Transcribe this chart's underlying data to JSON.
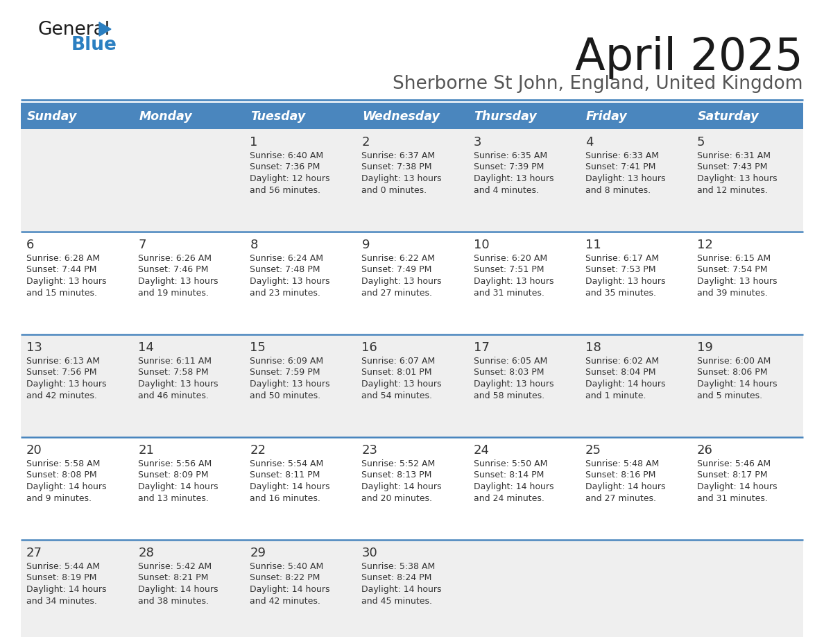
{
  "title": "April 2025",
  "subtitle": "Sherborne St John, England, United Kingdom",
  "header_bg": "#4a86be",
  "header_text": "#ffffff",
  "row_bg_light": "#efefef",
  "row_bg_white": "#ffffff",
  "separator_color": "#4a86be",
  "text_color": "#333333",
  "day_headers": [
    "Sunday",
    "Monday",
    "Tuesday",
    "Wednesday",
    "Thursday",
    "Friday",
    "Saturday"
  ],
  "calendar": [
    [
      {
        "day": "",
        "info": ""
      },
      {
        "day": "",
        "info": ""
      },
      {
        "day": "1",
        "info": "Sunrise: 6:40 AM\nSunset: 7:36 PM\nDaylight: 12 hours\nand 56 minutes."
      },
      {
        "day": "2",
        "info": "Sunrise: 6:37 AM\nSunset: 7:38 PM\nDaylight: 13 hours\nand 0 minutes."
      },
      {
        "day": "3",
        "info": "Sunrise: 6:35 AM\nSunset: 7:39 PM\nDaylight: 13 hours\nand 4 minutes."
      },
      {
        "day": "4",
        "info": "Sunrise: 6:33 AM\nSunset: 7:41 PM\nDaylight: 13 hours\nand 8 minutes."
      },
      {
        "day": "5",
        "info": "Sunrise: 6:31 AM\nSunset: 7:43 PM\nDaylight: 13 hours\nand 12 minutes."
      }
    ],
    [
      {
        "day": "6",
        "info": "Sunrise: 6:28 AM\nSunset: 7:44 PM\nDaylight: 13 hours\nand 15 minutes."
      },
      {
        "day": "7",
        "info": "Sunrise: 6:26 AM\nSunset: 7:46 PM\nDaylight: 13 hours\nand 19 minutes."
      },
      {
        "day": "8",
        "info": "Sunrise: 6:24 AM\nSunset: 7:48 PM\nDaylight: 13 hours\nand 23 minutes."
      },
      {
        "day": "9",
        "info": "Sunrise: 6:22 AM\nSunset: 7:49 PM\nDaylight: 13 hours\nand 27 minutes."
      },
      {
        "day": "10",
        "info": "Sunrise: 6:20 AM\nSunset: 7:51 PM\nDaylight: 13 hours\nand 31 minutes."
      },
      {
        "day": "11",
        "info": "Sunrise: 6:17 AM\nSunset: 7:53 PM\nDaylight: 13 hours\nand 35 minutes."
      },
      {
        "day": "12",
        "info": "Sunrise: 6:15 AM\nSunset: 7:54 PM\nDaylight: 13 hours\nand 39 minutes."
      }
    ],
    [
      {
        "day": "13",
        "info": "Sunrise: 6:13 AM\nSunset: 7:56 PM\nDaylight: 13 hours\nand 42 minutes."
      },
      {
        "day": "14",
        "info": "Sunrise: 6:11 AM\nSunset: 7:58 PM\nDaylight: 13 hours\nand 46 minutes."
      },
      {
        "day": "15",
        "info": "Sunrise: 6:09 AM\nSunset: 7:59 PM\nDaylight: 13 hours\nand 50 minutes."
      },
      {
        "day": "16",
        "info": "Sunrise: 6:07 AM\nSunset: 8:01 PM\nDaylight: 13 hours\nand 54 minutes."
      },
      {
        "day": "17",
        "info": "Sunrise: 6:05 AM\nSunset: 8:03 PM\nDaylight: 13 hours\nand 58 minutes."
      },
      {
        "day": "18",
        "info": "Sunrise: 6:02 AM\nSunset: 8:04 PM\nDaylight: 14 hours\nand 1 minute."
      },
      {
        "day": "19",
        "info": "Sunrise: 6:00 AM\nSunset: 8:06 PM\nDaylight: 14 hours\nand 5 minutes."
      }
    ],
    [
      {
        "day": "20",
        "info": "Sunrise: 5:58 AM\nSunset: 8:08 PM\nDaylight: 14 hours\nand 9 minutes."
      },
      {
        "day": "21",
        "info": "Sunrise: 5:56 AM\nSunset: 8:09 PM\nDaylight: 14 hours\nand 13 minutes."
      },
      {
        "day": "22",
        "info": "Sunrise: 5:54 AM\nSunset: 8:11 PM\nDaylight: 14 hours\nand 16 minutes."
      },
      {
        "day": "23",
        "info": "Sunrise: 5:52 AM\nSunset: 8:13 PM\nDaylight: 14 hours\nand 20 minutes."
      },
      {
        "day": "24",
        "info": "Sunrise: 5:50 AM\nSunset: 8:14 PM\nDaylight: 14 hours\nand 24 minutes."
      },
      {
        "day": "25",
        "info": "Sunrise: 5:48 AM\nSunset: 8:16 PM\nDaylight: 14 hours\nand 27 minutes."
      },
      {
        "day": "26",
        "info": "Sunrise: 5:46 AM\nSunset: 8:17 PM\nDaylight: 14 hours\nand 31 minutes."
      }
    ],
    [
      {
        "day": "27",
        "info": "Sunrise: 5:44 AM\nSunset: 8:19 PM\nDaylight: 14 hours\nand 34 minutes."
      },
      {
        "day": "28",
        "info": "Sunrise: 5:42 AM\nSunset: 8:21 PM\nDaylight: 14 hours\nand 38 minutes."
      },
      {
        "day": "29",
        "info": "Sunrise: 5:40 AM\nSunset: 8:22 PM\nDaylight: 14 hours\nand 42 minutes."
      },
      {
        "day": "30",
        "info": "Sunrise: 5:38 AM\nSunset: 8:24 PM\nDaylight: 14 hours\nand 45 minutes."
      },
      {
        "day": "",
        "info": ""
      },
      {
        "day": "",
        "info": ""
      },
      {
        "day": "",
        "info": ""
      }
    ]
  ],
  "logo_color_general": "#1a1a1a",
  "logo_color_blue": "#2b7fc1",
  "logo_triangle_color": "#2b7fc1",
  "title_color": "#1a1a1a",
  "subtitle_color": "#555555"
}
